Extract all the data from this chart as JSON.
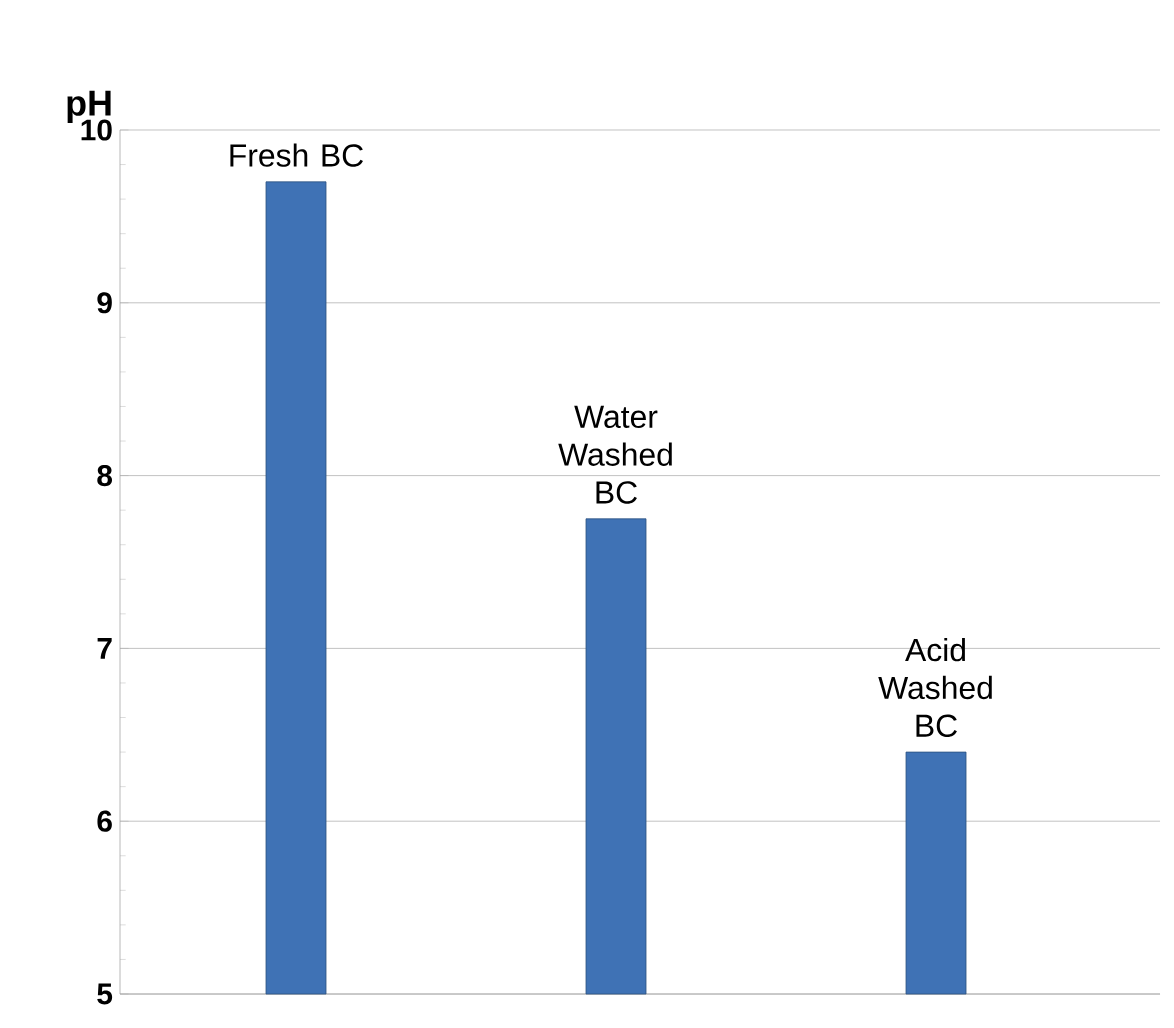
{
  "chart_data": {
    "type": "bar",
    "ylabel": "pH",
    "categories": [
      "Fresh BC",
      "Water Washed BC",
      "Acid Washed BC"
    ],
    "values": [
      9.7,
      7.75,
      6.4
    ],
    "color": "#3f72b5",
    "ylim": [
      5,
      10
    ],
    "yticks": [
      5,
      6,
      7,
      8,
      9,
      10
    ],
    "grid": "y"
  }
}
